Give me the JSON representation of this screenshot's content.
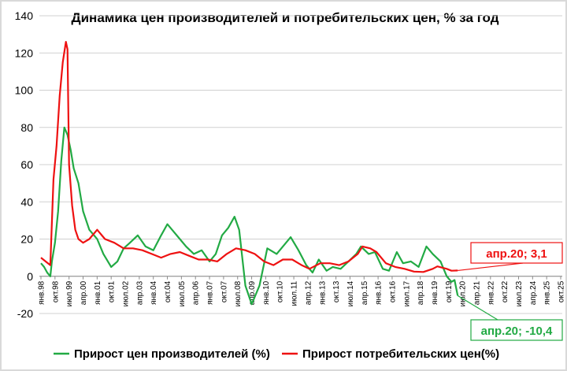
{
  "chart_data": {
    "type": "line",
    "title": "Динамика цен производителей и потребительских цен, % за год",
    "xlabel": "",
    "ylabel": "",
    "ylim": [
      -20,
      140
    ],
    "yticks": [
      -20,
      0,
      20,
      40,
      60,
      80,
      100,
      120,
      140
    ],
    "grid": "horizontal",
    "legend_position": "bottom",
    "x_tick_labels": [
      "янв.98",
      "окт.98",
      "июл.99",
      "апр.00",
      "янв.01",
      "окт.01",
      "июл.02",
      "апр.03",
      "янв.04",
      "окт.04",
      "июл.05",
      "апр.06",
      "янв.07",
      "окт.07",
      "июл.08",
      "апр.09",
      "янв.10",
      "окт.10",
      "июл.11",
      "апр.12",
      "янв.13",
      "окт.13",
      "июл.14",
      "апр.15",
      "янв.16",
      "окт.16",
      "июл.17",
      "апр.18",
      "янв.19",
      "окт.19",
      "июл.20",
      "апр.21",
      "янв.22",
      "окт.22",
      "июл.23",
      "апр.24",
      "янв.25",
      "окт.25"
    ],
    "series": [
      {
        "name": "Прирост цен производителей (%)",
        "color": "#22aa44",
        "points": [
          [
            "1998-01",
            7
          ],
          [
            "1998-03",
            5
          ],
          [
            "1998-05",
            2
          ],
          [
            "1998-07",
            0
          ],
          [
            "1998-08",
            8
          ],
          [
            "1998-10",
            18
          ],
          [
            "1998-12",
            35
          ],
          [
            "1999-02",
            62
          ],
          [
            "1999-04",
            80
          ],
          [
            "1999-06",
            76
          ],
          [
            "1999-08",
            68
          ],
          [
            "1999-10",
            58
          ],
          [
            "2000-01",
            50
          ],
          [
            "2000-04",
            35
          ],
          [
            "2000-08",
            25
          ],
          [
            "2001-01",
            20
          ],
          [
            "2001-05",
            12
          ],
          [
            "2001-10",
            5
          ],
          [
            "2002-02",
            8
          ],
          [
            "2002-06",
            15
          ],
          [
            "2002-10",
            18
          ],
          [
            "2003-03",
            22
          ],
          [
            "2003-08",
            16
          ],
          [
            "2004-01",
            14
          ],
          [
            "2004-06",
            22
          ],
          [
            "2004-10",
            28
          ],
          [
            "2005-01",
            25
          ],
          [
            "2005-06",
            20
          ],
          [
            "2005-10",
            16
          ],
          [
            "2006-03",
            12
          ],
          [
            "2006-08",
            14
          ],
          [
            "2007-01",
            8
          ],
          [
            "2007-05",
            12
          ],
          [
            "2007-09",
            22
          ],
          [
            "2008-01",
            26
          ],
          [
            "2008-05",
            32
          ],
          [
            "2008-08",
            25
          ],
          [
            "2008-12",
            -5
          ],
          [
            "2009-04",
            -15
          ],
          [
            "2009-09",
            -5
          ],
          [
            "2010-02",
            15
          ],
          [
            "2010-08",
            12
          ],
          [
            "2011-01",
            17
          ],
          [
            "2011-05",
            21
          ],
          [
            "2011-10",
            14
          ],
          [
            "2012-03",
            6
          ],
          [
            "2012-07",
            2
          ],
          [
            "2012-11",
            9
          ],
          [
            "2013-04",
            3
          ],
          [
            "2013-08",
            5
          ],
          [
            "2014-01",
            4
          ],
          [
            "2014-06",
            8
          ],
          [
            "2014-11",
            12
          ],
          [
            "2015-02",
            16
          ],
          [
            "2015-07",
            12
          ],
          [
            "2015-11",
            13
          ],
          [
            "2016-04",
            4
          ],
          [
            "2016-08",
            3
          ],
          [
            "2017-01",
            13
          ],
          [
            "2017-05",
            7
          ],
          [
            "2017-10",
            8
          ],
          [
            "2018-03",
            5
          ],
          [
            "2018-08",
            16
          ],
          [
            "2018-12",
            12
          ],
          [
            "2019-05",
            8
          ],
          [
            "2019-09",
            0
          ],
          [
            "2019-12",
            -3
          ],
          [
            "2020-02",
            -2
          ],
          [
            "2020-04",
            -10.4
          ]
        ]
      },
      {
        "name": "Прирост потребительских цен(%)",
        "color": "#ee1111",
        "points": [
          [
            "1998-01",
            10
          ],
          [
            "1998-04",
            8
          ],
          [
            "1998-07",
            6
          ],
          [
            "1998-09",
            52
          ],
          [
            "1998-11",
            70
          ],
          [
            "1999-01",
            97
          ],
          [
            "1999-03",
            115
          ],
          [
            "1999-05",
            126
          ],
          [
            "1999-06",
            122
          ],
          [
            "1999-07",
            60
          ],
          [
            "1999-09",
            38
          ],
          [
            "1999-11",
            25
          ],
          [
            "2000-01",
            20
          ],
          [
            "2000-04",
            18
          ],
          [
            "2000-08",
            20
          ],
          [
            "2001-01",
            25
          ],
          [
            "2001-06",
            20
          ],
          [
            "2001-12",
            18
          ],
          [
            "2002-06",
            15
          ],
          [
            "2002-12",
            15
          ],
          [
            "2003-06",
            14
          ],
          [
            "2003-12",
            12
          ],
          [
            "2004-06",
            10
          ],
          [
            "2004-12",
            12
          ],
          [
            "2005-06",
            13
          ],
          [
            "2005-12",
            11
          ],
          [
            "2006-06",
            9
          ],
          [
            "2006-12",
            9
          ],
          [
            "2007-06",
            8
          ],
          [
            "2007-12",
            12
          ],
          [
            "2008-06",
            15
          ],
          [
            "2008-12",
            14
          ],
          [
            "2009-06",
            12
          ],
          [
            "2009-12",
            8
          ],
          [
            "2010-06",
            6
          ],
          [
            "2010-12",
            9
          ],
          [
            "2011-06",
            9
          ],
          [
            "2011-12",
            6
          ],
          [
            "2012-05",
            4
          ],
          [
            "2012-12",
            7
          ],
          [
            "2013-06",
            7
          ],
          [
            "2013-12",
            6
          ],
          [
            "2014-06",
            8
          ],
          [
            "2014-12",
            12
          ],
          [
            "2015-03",
            16
          ],
          [
            "2015-08",
            15
          ],
          [
            "2015-12",
            13
          ],
          [
            "2016-06",
            7
          ],
          [
            "2016-12",
            5
          ],
          [
            "2017-06",
            4
          ],
          [
            "2017-12",
            2.5
          ],
          [
            "2018-06",
            2.3
          ],
          [
            "2018-12",
            4
          ],
          [
            "2019-03",
            5.3
          ],
          [
            "2019-09",
            4
          ],
          [
            "2019-12",
            3
          ],
          [
            "2020-04",
            3.1
          ]
        ]
      }
    ],
    "annotations": [
      {
        "text": "апр.20; 3,1",
        "color": "#ee1111",
        "series": 1,
        "x": "2020-04",
        "y": 3.1
      },
      {
        "text": "апр.20; -10,4",
        "color": "#22aa44",
        "series": 0,
        "x": "2020-04",
        "y": -10.4
      }
    ]
  }
}
